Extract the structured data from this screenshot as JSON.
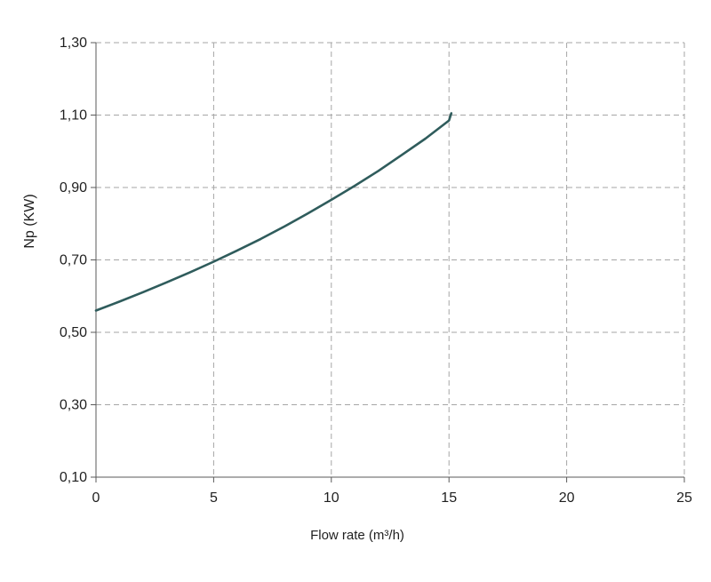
{
  "chart_data": {
    "type": "line",
    "title": "",
    "xlabel": "Flow rate (m³/h)",
    "ylabel": "Np (KW)",
    "xlim": [
      0,
      25
    ],
    "ylim": [
      0.1,
      1.3
    ],
    "x_ticks": [
      0,
      5,
      10,
      15,
      20,
      25
    ],
    "x_tick_labels": [
      "0",
      "5",
      "10",
      "15",
      "20",
      "25"
    ],
    "y_ticks": [
      0.1,
      0.3,
      0.5,
      0.7,
      0.9,
      1.1,
      1.3
    ],
    "y_tick_labels": [
      "0,10",
      "0,30",
      "0,50",
      "0,70",
      "0,90",
      "1,10",
      "1,30"
    ],
    "grid": true,
    "grid_style": "dashed",
    "legend": false,
    "series": [
      {
        "color": "#2f5c5c",
        "x": [
          0,
          1,
          2,
          3,
          4,
          5,
          6,
          7,
          8,
          9,
          10,
          11,
          12,
          13,
          14,
          15,
          15.1
        ],
        "y": [
          0.56,
          0.585,
          0.611,
          0.638,
          0.666,
          0.695,
          0.726,
          0.758,
          0.792,
          0.828,
          0.866,
          0.905,
          0.946,
          0.99,
          1.035,
          1.085,
          1.105
        ]
      }
    ]
  }
}
